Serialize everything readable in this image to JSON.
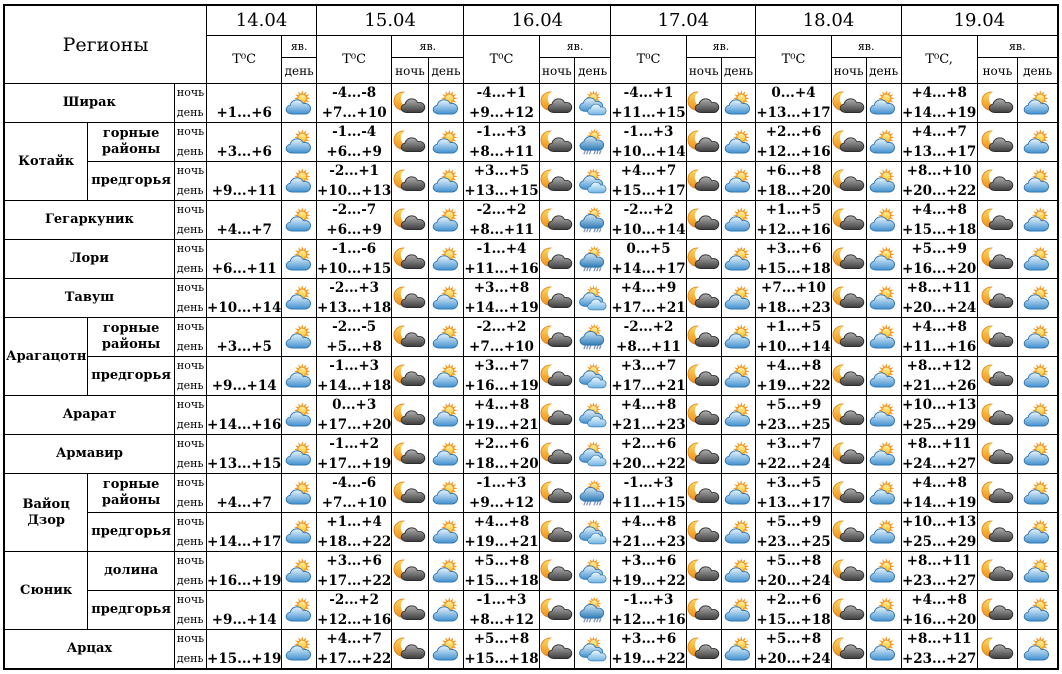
{
  "header": {
    "regions_label": "Регионы",
    "dates": [
      "14.04",
      "15.04",
      "16.04",
      "17.04",
      "18.04",
      "19.04"
    ],
    "temp_labels": [
      "T⁰C",
      "T⁰C",
      "T⁰C",
      "T⁰C",
      "T⁰C",
      "T⁰C,"
    ],
    "phenomenon_label": "яв.",
    "night_label": "ночь",
    "day_label": "день"
  },
  "palette": {
    "border": "#000000",
    "background": "#ffffff",
    "sun_rays": "#f7941d",
    "sun_core_light": "#fff3b0",
    "sun_core": "#ffc125",
    "moon_light": "#ffd75e",
    "moon": "#ef8f1a",
    "day_cloud_light": "#e8f4fc",
    "day_cloud": "#4090cf",
    "night_cloud_light": "#b0b0b0",
    "night_cloud": "#3c3c3c",
    "rain_drops": "#7d93bd"
  },
  "icon_legend": {
    "moon-cloud": "ночью облачно с прояснениями",
    "sun-cloud": "переменная облачность",
    "sun-2clouds": "облачно с прояснениями",
    "sun-rain": "облачно, дождь"
  },
  "rows": [
    {
      "region": "Ширак",
      "subregion": null,
      "region_rowspan": 1,
      "forecast": [
        {
          "day": "+1...+6",
          "day_icon": "sun-cloud"
        },
        {
          "night": "-4...-8",
          "day": "+7...+10",
          "night_icon": "moon-cloud",
          "day_icon": "sun-cloud"
        },
        {
          "night": "-4...+1",
          "day": "+9...+12",
          "night_icon": "moon-cloud",
          "day_icon": "sun-2clouds"
        },
        {
          "night": "-4...+1",
          "day": "+11...+15",
          "night_icon": "moon-cloud",
          "day_icon": "sun-cloud"
        },
        {
          "night": "0...+4",
          "day": "+13...+17",
          "night_icon": "moon-cloud",
          "day_icon": "sun-cloud"
        },
        {
          "night": "+4...+8",
          "day": "+14...+19",
          "night_icon": "moon-cloud",
          "day_icon": "sun-cloud"
        }
      ]
    },
    {
      "region": "Котайк",
      "subregion": "горные районы",
      "region_rowspan": 2,
      "forecast": [
        {
          "day": "+3...+6",
          "day_icon": "sun-cloud"
        },
        {
          "night": "-1...-4",
          "day": "+6...+9",
          "night_icon": "moon-cloud",
          "day_icon": "sun-cloud"
        },
        {
          "night": "-1...+3",
          "day": "+8...+11",
          "night_icon": "moon-cloud",
          "day_icon": "sun-rain"
        },
        {
          "night": "-1...+3",
          "day": "+10...+14",
          "night_icon": "moon-cloud",
          "day_icon": "sun-cloud"
        },
        {
          "night": "+2...+6",
          "day": "+12...+16",
          "night_icon": "moon-cloud",
          "day_icon": "sun-cloud"
        },
        {
          "night": "+4...+7",
          "day": "+13...+17",
          "night_icon": "moon-cloud",
          "day_icon": "sun-cloud"
        }
      ]
    },
    {
      "region": null,
      "subregion": "предгорья",
      "region_rowspan": 0,
      "forecast": [
        {
          "day": "+9...+11",
          "day_icon": "sun-cloud"
        },
        {
          "night": "-2...+1",
          "day": "+10...+13",
          "night_icon": "moon-cloud",
          "day_icon": "sun-cloud"
        },
        {
          "night": "+3...+5",
          "day": "+13...+15",
          "night_icon": "moon-cloud",
          "day_icon": "sun-2clouds"
        },
        {
          "night": "+4...+7",
          "day": "+15...+17",
          "night_icon": "moon-cloud",
          "day_icon": "sun-cloud"
        },
        {
          "night": "+6...+8",
          "day": "+18...+20",
          "night_icon": "moon-cloud",
          "day_icon": "sun-cloud"
        },
        {
          "night": "+8...+10",
          "day": "+20...+22",
          "night_icon": "moon-cloud",
          "day_icon": "sun-cloud"
        }
      ]
    },
    {
      "region": "Гегаркуник",
      "subregion": null,
      "region_rowspan": 1,
      "forecast": [
        {
          "day": "+4...+7",
          "day_icon": "sun-cloud"
        },
        {
          "night": "-2...-7",
          "day": "+6...+9",
          "night_icon": "moon-cloud",
          "day_icon": "sun-cloud"
        },
        {
          "night": "-2...+2",
          "day": "+8...+11",
          "night_icon": "moon-cloud",
          "day_icon": "sun-rain"
        },
        {
          "night": "-2...+2",
          "day": "+10...+14",
          "night_icon": "moon-cloud",
          "day_icon": "sun-cloud"
        },
        {
          "night": "+1...+5",
          "day": "+12...+16",
          "night_icon": "moon-cloud",
          "day_icon": "sun-cloud"
        },
        {
          "night": "+4...+8",
          "day": "+15...+18",
          "night_icon": "moon-cloud",
          "day_icon": "sun-cloud"
        }
      ]
    },
    {
      "region": "Лори",
      "subregion": null,
      "region_rowspan": 1,
      "forecast": [
        {
          "day": "+6...+11",
          "day_icon": "sun-cloud"
        },
        {
          "night": "-1...-6",
          "day": "+10...+15",
          "night_icon": "moon-cloud",
          "day_icon": "sun-cloud"
        },
        {
          "night": "-1...+4",
          "day": "+11...+16",
          "night_icon": "moon-cloud",
          "day_icon": "sun-rain"
        },
        {
          "night": "0...+5",
          "day": "+14...+17",
          "night_icon": "moon-cloud",
          "day_icon": "sun-cloud"
        },
        {
          "night": "+3...+6",
          "day": "+15...+18",
          "night_icon": "moon-cloud",
          "day_icon": "sun-cloud"
        },
        {
          "night": "+5...+9",
          "day": "+16...+20",
          "night_icon": "moon-cloud",
          "day_icon": "sun-cloud"
        }
      ]
    },
    {
      "region": "Тавуш",
      "subregion": null,
      "region_rowspan": 1,
      "forecast": [
        {
          "day": "+10...+14",
          "day_icon": "sun-cloud"
        },
        {
          "night": "-2...+3",
          "day": "+13...+18",
          "night_icon": "moon-cloud",
          "day_icon": "sun-cloud"
        },
        {
          "night": "+3...+8",
          "day": "+14...+19",
          "night_icon": "moon-cloud",
          "day_icon": "sun-2clouds"
        },
        {
          "night": "+4...+9",
          "day": "+17...+21",
          "night_icon": "moon-cloud",
          "day_icon": "sun-cloud"
        },
        {
          "night": "+7...+10",
          "day": "+18...+23",
          "night_icon": "moon-cloud",
          "day_icon": "sun-cloud"
        },
        {
          "night": "+8...+11",
          "day": "+20...+24",
          "night_icon": "moon-cloud",
          "day_icon": "sun-cloud"
        }
      ]
    },
    {
      "region": "Арагацотн",
      "subregion": "горные районы",
      "region_rowspan": 2,
      "forecast": [
        {
          "day": "+3...+5",
          "day_icon": "sun-cloud"
        },
        {
          "night": "-2...-5",
          "day": "+5...+8",
          "night_icon": "moon-cloud",
          "day_icon": "sun-cloud"
        },
        {
          "night": "-2...+2",
          "day": "+7...+10",
          "night_icon": "moon-cloud",
          "day_icon": "sun-rain"
        },
        {
          "night": "-2...+2",
          "day": "+8...+11",
          "night_icon": "moon-cloud",
          "day_icon": "sun-cloud"
        },
        {
          "night": "+1...+5",
          "day": "+10...+14",
          "night_icon": "moon-cloud",
          "day_icon": "sun-cloud"
        },
        {
          "night": "+4...+8",
          "day": "+11...+16",
          "night_icon": "moon-cloud",
          "day_icon": "sun-cloud"
        }
      ]
    },
    {
      "region": null,
      "subregion": "предгорья",
      "region_rowspan": 0,
      "forecast": [
        {
          "day": "+9...+14",
          "day_icon": "sun-cloud"
        },
        {
          "night": "-1...+3",
          "day": "+14...+18",
          "night_icon": "moon-cloud",
          "day_icon": "sun-cloud"
        },
        {
          "night": "+3...+7",
          "day": "+16...+19",
          "night_icon": "moon-cloud",
          "day_icon": "sun-2clouds"
        },
        {
          "night": "+3...+7",
          "day": "+17...+21",
          "night_icon": "moon-cloud",
          "day_icon": "sun-cloud"
        },
        {
          "night": "+4...+8",
          "day": "+19...+22",
          "night_icon": "moon-cloud",
          "day_icon": "sun-cloud"
        },
        {
          "night": "+8...+12",
          "day": "+21...+26",
          "night_icon": "moon-cloud",
          "day_icon": "sun-cloud"
        }
      ]
    },
    {
      "region": "Арарат",
      "subregion": null,
      "region_rowspan": 1,
      "forecast": [
        {
          "day": "+14...+16",
          "day_icon": "sun-cloud"
        },
        {
          "night": "0...+3",
          "day": "+17...+20",
          "night_icon": "moon-cloud",
          "day_icon": "sun-cloud"
        },
        {
          "night": "+4...+8",
          "day": "+19...+21",
          "night_icon": "moon-cloud",
          "day_icon": "sun-2clouds"
        },
        {
          "night": "+4...+8",
          "day": "+21...+23",
          "night_icon": "moon-cloud",
          "day_icon": "sun-cloud"
        },
        {
          "night": "+5...+9",
          "day": "+23...+25",
          "night_icon": "moon-cloud",
          "day_icon": "sun-cloud"
        },
        {
          "night": "+10...+13",
          "day": "+25...+29",
          "night_icon": "moon-cloud",
          "day_icon": "sun-cloud"
        }
      ]
    },
    {
      "region": "Армавир",
      "subregion": null,
      "region_rowspan": 1,
      "forecast": [
        {
          "day": "+13...+15",
          "day_icon": "sun-cloud"
        },
        {
          "night": "-1...+2",
          "day": "+17...+19",
          "night_icon": "moon-cloud",
          "day_icon": "sun-cloud"
        },
        {
          "night": "+2...+6",
          "day": "+18...+20",
          "night_icon": "moon-cloud",
          "day_icon": "sun-2clouds"
        },
        {
          "night": "+2...+6",
          "day": "+20...+22",
          "night_icon": "moon-cloud",
          "day_icon": "sun-cloud"
        },
        {
          "night": "+3...+7",
          "day": "+22...+24",
          "night_icon": "moon-cloud",
          "day_icon": "sun-cloud"
        },
        {
          "night": "+8...+11",
          "day": "+24...+27",
          "night_icon": "moon-cloud",
          "day_icon": "sun-cloud"
        }
      ]
    },
    {
      "region": "Вайоц Дзор",
      "subregion": "горные районы",
      "region_rowspan": 2,
      "forecast": [
        {
          "day": "+4...+7",
          "day_icon": "sun-cloud"
        },
        {
          "night": "-4...-6",
          "day": "+7...+10",
          "night_icon": "moon-cloud",
          "day_icon": "sun-cloud"
        },
        {
          "night": "-1...+3",
          "day": "+9...+12",
          "night_icon": "moon-cloud",
          "day_icon": "sun-rain"
        },
        {
          "night": "-1...+3",
          "day": "+11...+15",
          "night_icon": "moon-cloud",
          "day_icon": "sun-cloud"
        },
        {
          "night": "+3...+5",
          "day": "+13...+17",
          "night_icon": "moon-cloud",
          "day_icon": "sun-cloud"
        },
        {
          "night": "+4...+8",
          "day": "+14...+19",
          "night_icon": "moon-cloud",
          "day_icon": "sun-cloud"
        }
      ]
    },
    {
      "region": null,
      "subregion": "предгорья",
      "region_rowspan": 0,
      "forecast": [
        {
          "day": "+14...+17",
          "day_icon": "sun-cloud"
        },
        {
          "night": "+1...+4",
          "day": "+18...+22",
          "night_icon": "moon-cloud",
          "day_icon": "sun-cloud"
        },
        {
          "night": "+4...+8",
          "day": "+19...+21",
          "night_icon": "moon-cloud",
          "day_icon": "sun-2clouds"
        },
        {
          "night": "+4...+8",
          "day": "+21...+23",
          "night_icon": "moon-cloud",
          "day_icon": "sun-cloud"
        },
        {
          "night": "+5...+9",
          "day": "+23...+25",
          "night_icon": "moon-cloud",
          "day_icon": "sun-cloud"
        },
        {
          "night": "+10...+13",
          "day": "+25...+29",
          "night_icon": "moon-cloud",
          "day_icon": "sun-cloud"
        }
      ]
    },
    {
      "region": "Сюник",
      "subregion": "долина",
      "region_rowspan": 2,
      "forecast": [
        {
          "day": "+16...+19",
          "day_icon": "sun-cloud"
        },
        {
          "night": "+3...+6",
          "day": "+17...+22",
          "night_icon": "moon-cloud",
          "day_icon": "sun-cloud"
        },
        {
          "night": "+5...+8",
          "day": "+15...+18",
          "night_icon": "moon-cloud",
          "day_icon": "sun-2clouds"
        },
        {
          "night": "+3...+6",
          "day": "+19...+22",
          "night_icon": "moon-cloud",
          "day_icon": "sun-cloud"
        },
        {
          "night": "+5...+8",
          "day": "+20...+24",
          "night_icon": "moon-cloud",
          "day_icon": "sun-cloud"
        },
        {
          "night": "+8...+11",
          "day": "+23...+27",
          "night_icon": "moon-cloud",
          "day_icon": "sun-cloud"
        }
      ]
    },
    {
      "region": null,
      "subregion": "предгорья",
      "region_rowspan": 0,
      "forecast": [
        {
          "day": "+9...+14",
          "day_icon": "sun-cloud"
        },
        {
          "night": "-2...+2",
          "day": "+12...+16",
          "night_icon": "moon-cloud",
          "day_icon": "sun-cloud"
        },
        {
          "night": "-1...+3",
          "day": "+8...+12",
          "night_icon": "moon-cloud",
          "day_icon": "sun-rain"
        },
        {
          "night": "-1...+3",
          "day": "+12...+16",
          "night_icon": "moon-cloud",
          "day_icon": "sun-cloud"
        },
        {
          "night": "+2...+6",
          "day": "+15...+18",
          "night_icon": "moon-cloud",
          "day_icon": "sun-cloud"
        },
        {
          "night": "+4...+8",
          "day": "+16...+20",
          "night_icon": "moon-cloud",
          "day_icon": "sun-cloud"
        }
      ]
    },
    {
      "region": "Арцах",
      "subregion": null,
      "region_rowspan": 1,
      "forecast": [
        {
          "day": "+15...+19",
          "day_icon": "sun-cloud"
        },
        {
          "night": "+4...+7",
          "day": "+17...+22",
          "night_icon": "moon-cloud",
          "day_icon": "sun-cloud"
        },
        {
          "night": "+5...+8",
          "day": "+15...+18",
          "night_icon": "moon-cloud",
          "day_icon": "sun-2clouds"
        },
        {
          "night": "+3...+6",
          "day": "+19...+22",
          "night_icon": "moon-cloud",
          "day_icon": "sun-cloud"
        },
        {
          "night": "+5...+8",
          "day": "+20...+24",
          "night_icon": "moon-cloud",
          "day_icon": "sun-cloud"
        },
        {
          "night": "+8...+11",
          "day": "+23...+27",
          "night_icon": "moon-cloud",
          "day_icon": "sun-cloud"
        }
      ]
    }
  ]
}
